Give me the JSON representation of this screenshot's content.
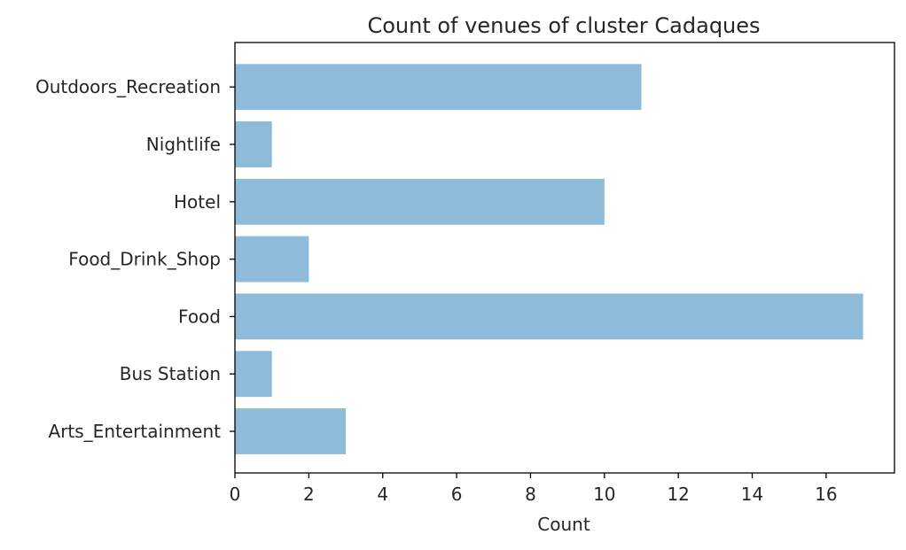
{
  "chart_data": {
    "type": "bar",
    "orientation": "horizontal",
    "title": "Count of venues of cluster Cadaques",
    "xlabel": "Count",
    "ylabel": "",
    "categories": [
      "Arts_Entertainment",
      "Bus Station",
      "Food",
      "Food_Drink_Shop",
      "Hotel",
      "Nightlife",
      "Outdoors_Recreation"
    ],
    "values": [
      3,
      1,
      17,
      2,
      10,
      1,
      11
    ],
    "xlim": [
      0,
      17.85
    ],
    "xticks": [
      0,
      2,
      4,
      6,
      8,
      10,
      12,
      14,
      16
    ],
    "bar_color": "#8fbbda",
    "grid": false,
    "legend": "none"
  }
}
